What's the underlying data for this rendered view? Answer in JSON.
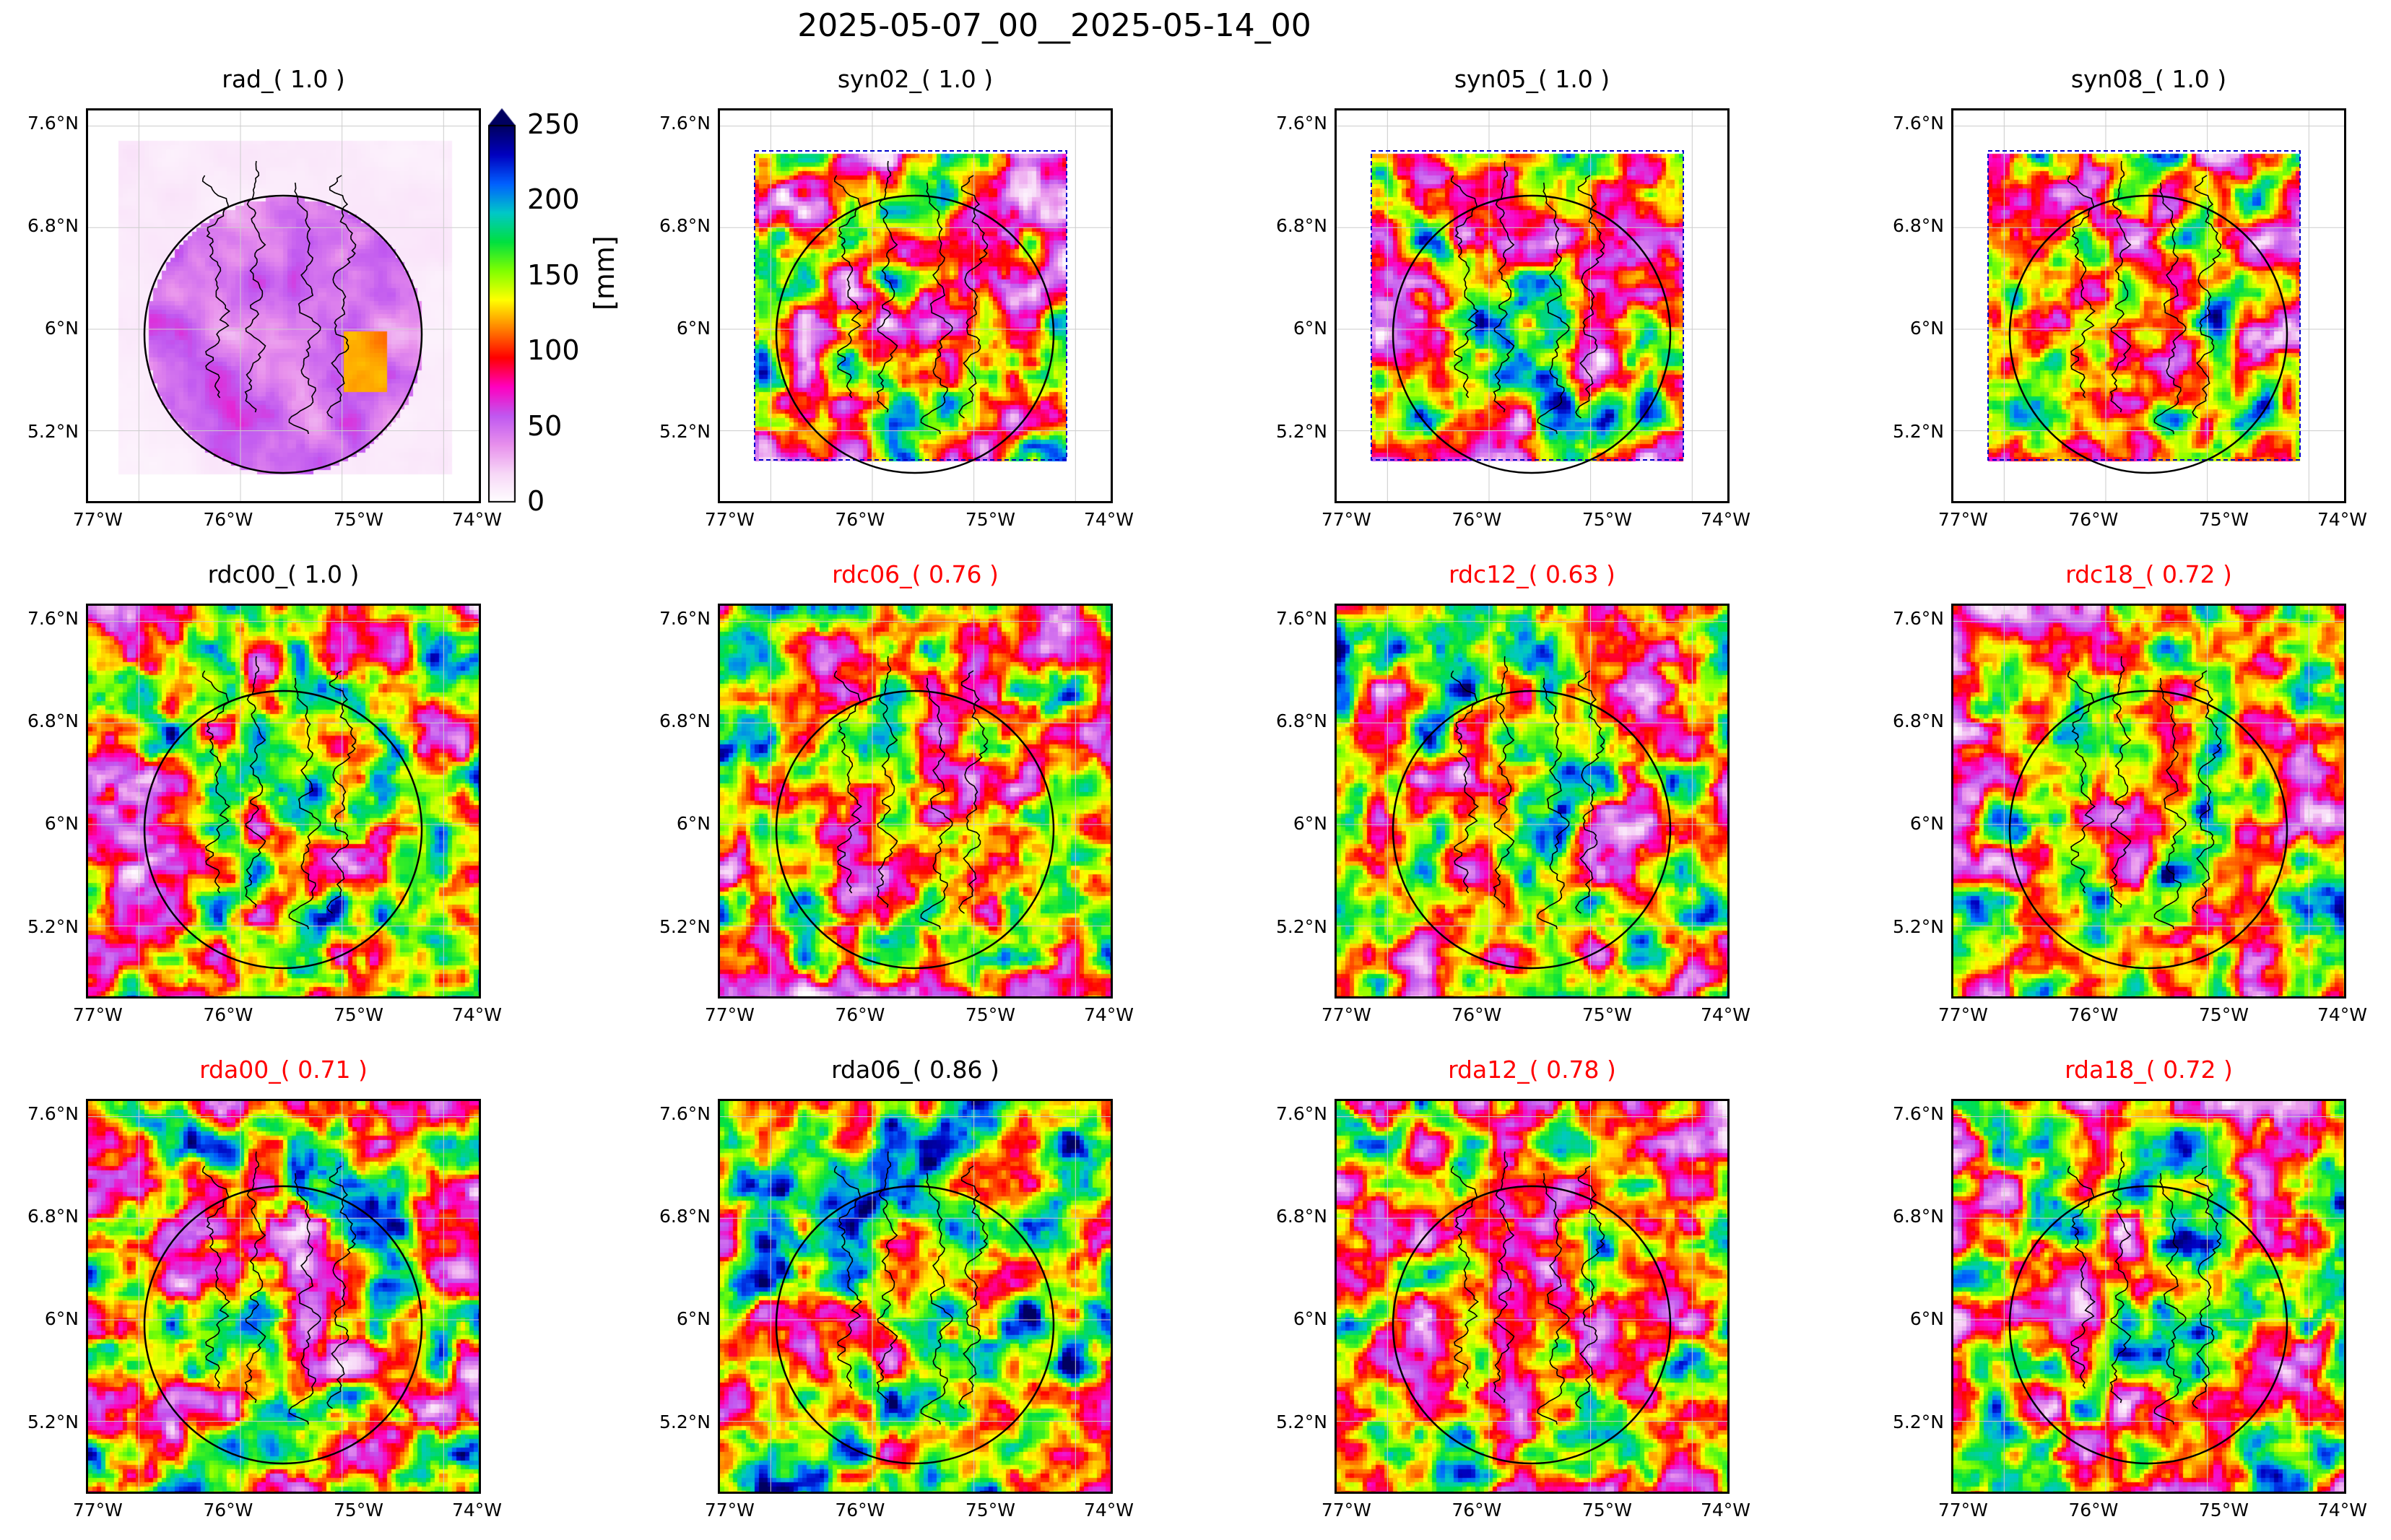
{
  "figure": {
    "title": "2025-05-07_00__2025-05-14_00",
    "colorbar": {
      "label": "[mm]",
      "ticks": [
        "0",
        "50",
        "100",
        "150",
        "200",
        "250"
      ],
      "min": 0,
      "max": 250,
      "extend": "max",
      "colors": [
        "#ffffff",
        "#f7d8f7",
        "#e890ec",
        "#c058f0",
        "#ff00c0",
        "#ff0000",
        "#ff8000",
        "#ffff00",
        "#80ff00",
        "#00e040",
        "#00c8c8",
        "#0060ff",
        "#0000c0",
        "#000060"
      ]
    },
    "axes": {
      "x_ticks": [
        "77°W",
        "76°W",
        "75°W",
        "74°W"
      ],
      "y_ticks": [
        "7.6°N",
        "6.8°N",
        "6°N",
        "5.2°N"
      ]
    },
    "title_colors": {
      "normal": "#000000",
      "highlight": "#ff0000"
    }
  },
  "chart_data": {
    "type": "heatmap",
    "panels": [
      {
        "id": "rad",
        "title": "rad_( 1.0 )",
        "highlight": false,
        "style": "radar"
      },
      {
        "id": "syn02",
        "title": "syn02_( 1.0 )",
        "highlight": false,
        "style": "syn"
      },
      {
        "id": "syn05",
        "title": "syn05_( 1.0 )",
        "highlight": false,
        "style": "syn"
      },
      {
        "id": "syn08",
        "title": "syn08_( 1.0 )",
        "highlight": false,
        "style": "syn"
      },
      {
        "id": "rdc00",
        "title": "rdc00_( 1.0 )",
        "highlight": false,
        "style": "full"
      },
      {
        "id": "rdc06",
        "title": "rdc06_( 0.76 )",
        "highlight": true,
        "style": "full"
      },
      {
        "id": "rdc12",
        "title": "rdc12_( 0.63 )",
        "highlight": true,
        "style": "full"
      },
      {
        "id": "rdc18",
        "title": "rdc18_( 0.72 )",
        "highlight": true,
        "style": "full"
      },
      {
        "id": "rda00",
        "title": "rda00_( 0.71 )",
        "highlight": true,
        "style": "full"
      },
      {
        "id": "rda06",
        "title": "rda06_( 0.86 )",
        "highlight": false,
        "style": "full"
      },
      {
        "id": "rda12",
        "title": "rda12_( 0.78 )",
        "highlight": true,
        "style": "full"
      },
      {
        "id": "rda18",
        "title": "rda18_( 0.72 )",
        "highlight": true,
        "style": "full"
      }
    ]
  }
}
